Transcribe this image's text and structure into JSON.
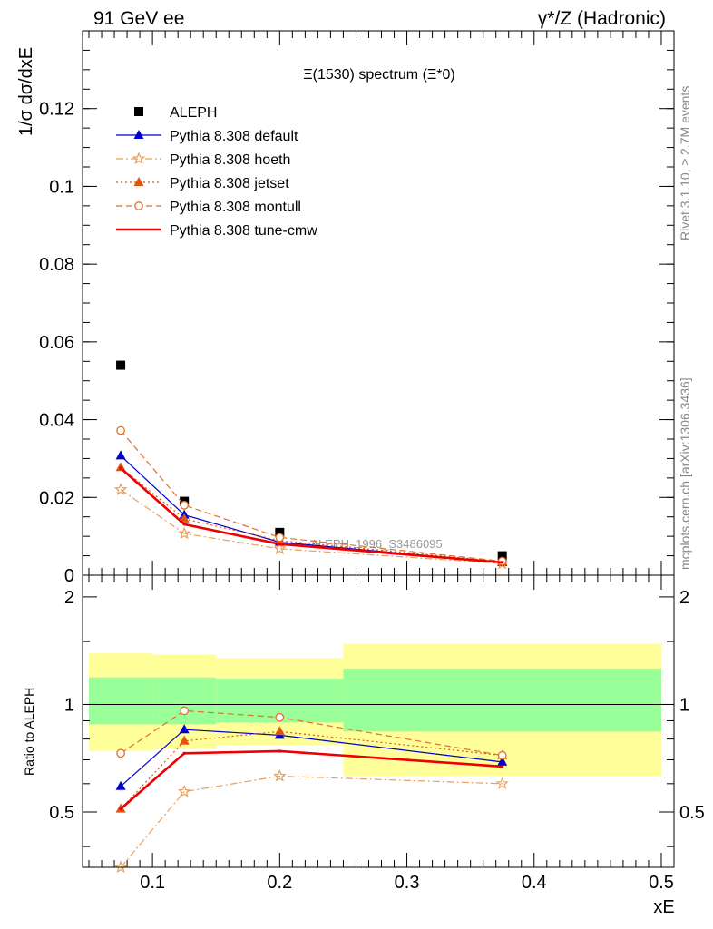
{
  "header": {
    "left": "91 GeV ee",
    "right": "γ*/Z (Hadronic)"
  },
  "side_texts": {
    "rivet": "Rivet 3.1.10, ≥ 2.7M events",
    "mcplots": "mcplots.cern.ch [arXiv:1306.3436]"
  },
  "chart_data": [
    {
      "type": "line",
      "panel": "main",
      "title": "Ξ(1530) spectrum (Ξ*0)",
      "ylabel": "1/σ dσ/dxE",
      "watermark": "ALEPH_1996_S3486095",
      "xlim": [
        0.045,
        0.51
      ],
      "ylim": [
        0,
        0.14
      ],
      "yticks": [
        0,
        0.02,
        0.04,
        0.06,
        0.08,
        0.1,
        0.12
      ],
      "ytick_labels": [
        "0",
        "0.02",
        "0.04",
        "0.06",
        "0.08",
        "0.1",
        "0.12"
      ],
      "grid": false,
      "legend_position": "top-left",
      "x": [
        0.075,
        0.125,
        0.2,
        0.375
      ],
      "series": [
        {
          "name": "ALEPH",
          "values": [
            0.054,
            0.019,
            0.011,
            0.005
          ],
          "color": "#000000",
          "marker": "square",
          "line": "none"
        },
        {
          "name": "Pythia 8.308 default",
          "values": [
            0.0307,
            0.0155,
            0.0085,
            0.0033
          ],
          "color": "#0000cc",
          "marker": "triangle",
          "line": "solid"
        },
        {
          "name": "Pythia 8.308 hoeth",
          "values": [
            0.022,
            0.0107,
            0.0068,
            0.003
          ],
          "color": "#e8a060",
          "marker": "star",
          "line": "dashdot"
        },
        {
          "name": "Pythia 8.308 jetset",
          "values": [
            0.0277,
            0.0145,
            0.0089,
            0.0035
          ],
          "color": "#dd5511",
          "marker": "triangle",
          "line": "dotted"
        },
        {
          "name": "Pythia 8.308 montull",
          "values": [
            0.0372,
            0.018,
            0.0097,
            0.0036
          ],
          "color": "#e07030",
          "marker": "circle",
          "line": "dashed"
        },
        {
          "name": "Pythia 8.308 tune-cmw",
          "values": [
            0.0275,
            0.0131,
            0.008,
            0.0033
          ],
          "color": "#ee0000",
          "marker": "none",
          "line": "thick"
        }
      ]
    },
    {
      "type": "line",
      "panel": "ratio",
      "xlabel": "xE",
      "ylabel": "Ratio to ALEPH",
      "xlim": [
        0.045,
        0.51
      ],
      "ylim": [
        0.35,
        2.3
      ],
      "yscale": "log",
      "yticks": [
        0.5,
        1,
        2
      ],
      "ytick_labels": [
        "0.5",
        "1",
        "2"
      ],
      "xticks": [
        0.1,
        0.2,
        0.3,
        0.4,
        0.5
      ],
      "xtick_labels": [
        "0.1",
        "0.2",
        "0.3",
        "0.4",
        "0.5"
      ],
      "reference_line": 1,
      "bands": [
        {
          "x_range": [
            0.05,
            0.1
          ],
          "inner": [
            0.88,
            1.19
          ],
          "outer": [
            0.74,
            1.39
          ]
        },
        {
          "x_range": [
            0.1,
            0.15
          ],
          "inner": [
            0.88,
            1.19
          ],
          "outer": [
            0.75,
            1.38
          ]
        },
        {
          "x_range": [
            0.15,
            0.25
          ],
          "inner": [
            0.89,
            1.18
          ],
          "outer": [
            0.77,
            1.35
          ]
        },
        {
          "x_range": [
            0.25,
            0.5
          ],
          "inner": [
            0.84,
            1.26
          ],
          "outer": [
            0.63,
            1.48
          ]
        }
      ],
      "band_colors": {
        "inner": "#99ff99",
        "outer": "#ffff99"
      },
      "x": [
        0.075,
        0.125,
        0.2,
        0.375
      ],
      "series": [
        {
          "name": "Pythia 8.308 default",
          "values": [
            0.59,
            0.85,
            0.82,
            0.69
          ],
          "color": "#0000cc",
          "marker": "triangle",
          "line": "solid"
        },
        {
          "name": "Pythia 8.308 hoeth",
          "values": [
            0.35,
            0.57,
            0.63,
            0.6
          ],
          "color": "#e8a060",
          "marker": "star",
          "line": "dashdot"
        },
        {
          "name": "Pythia 8.308 jetset",
          "values": [
            0.51,
            0.79,
            0.84,
            0.72
          ],
          "color": "#dd5511",
          "marker": "triangle",
          "line": "dotted"
        },
        {
          "name": "Pythia 8.308 montull",
          "values": [
            0.73,
            0.96,
            0.92,
            0.72
          ],
          "color": "#e07030",
          "marker": "circle",
          "line": "dashed"
        },
        {
          "name": "Pythia 8.308 tune-cmw",
          "values": [
            0.51,
            0.73,
            0.74,
            0.67
          ],
          "color": "#ee0000",
          "marker": "none",
          "line": "thick"
        }
      ]
    }
  ]
}
